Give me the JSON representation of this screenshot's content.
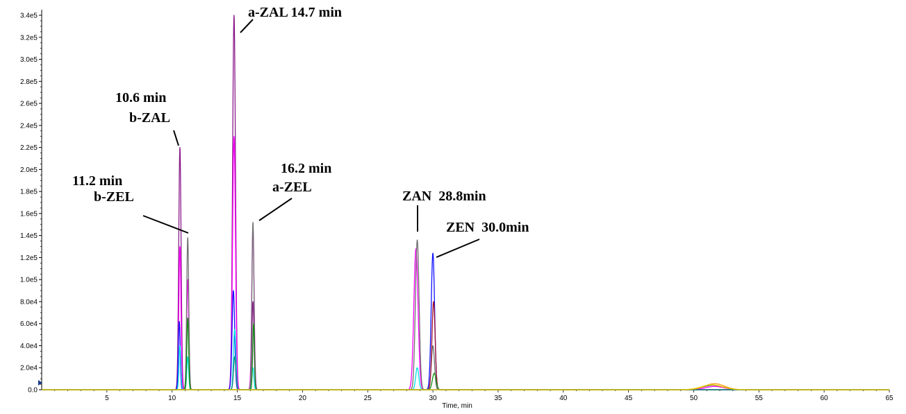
{
  "chart_data": {
    "type": "line",
    "title": "",
    "xlabel": "Time, min",
    "ylabel": "",
    "xlim": [
      0,
      65
    ],
    "ylim": [
      0,
      340000
    ],
    "grid": false,
    "x_ticks": [
      5,
      10,
      15,
      20,
      25,
      30,
      35,
      40,
      45,
      50,
      55,
      60,
      65
    ],
    "x_tick_labels": [
      "5",
      "10",
      "15",
      "20",
      "25",
      "30",
      "35",
      "40",
      "45",
      "50",
      "55",
      "60",
      "65"
    ],
    "y_ticks": [
      0,
      20000,
      40000,
      60000,
      80000,
      100000,
      120000,
      140000,
      160000,
      180000,
      200000,
      220000,
      240000,
      260000,
      280000,
      300000,
      320000,
      340000
    ],
    "y_tick_labels": [
      "0.0",
      "2.0e4",
      "4.0e4",
      "6.0e4",
      "8.0e4",
      "1.0e5",
      "1.2e5",
      "1.4e5",
      "1.6e5",
      "1.8e5",
      "2.0e5",
      "2.2e5",
      "2.4e5",
      "2.6e5",
      "2.8e5",
      "3.0e5",
      "3.2e5",
      "3.4e5"
    ],
    "colors": {
      "purple": "#8a1a8a",
      "magenta": "#ff00ff",
      "cyan": "#00e0e0",
      "blue": "#1010ff",
      "darkred": "#a01030",
      "green": "#109010",
      "gray": "#707070",
      "orange": "#ff9a1a",
      "yellow": "#e0d000",
      "teal": "#108080"
    },
    "series": [
      {
        "color": "purple",
        "peaks": [
          {
            "t": 10.6,
            "h": 220000,
            "w": 0.09
          },
          {
            "t": 14.75,
            "h": 340000,
            "w": 0.11
          },
          {
            "t": 16.2,
            "h": 80000,
            "w": 0.08
          }
        ]
      },
      {
        "color": "magenta",
        "peaks": [
          {
            "t": 10.6,
            "h": 130000,
            "w": 0.08
          },
          {
            "t": 11.2,
            "h": 100000,
            "w": 0.08
          },
          {
            "t": 14.75,
            "h": 230000,
            "w": 0.11
          },
          {
            "t": 16.2,
            "h": 148000,
            "w": 0.09
          },
          {
            "t": 28.7,
            "h": 128000,
            "w": 0.16
          },
          {
            "t": 51.6,
            "h": 3000,
            "w": 0.7
          }
        ]
      },
      {
        "color": "gray",
        "peaks": [
          {
            "t": 11.2,
            "h": 138000,
            "w": 0.08
          },
          {
            "t": 16.2,
            "h": 152000,
            "w": 0.08
          },
          {
            "t": 28.8,
            "h": 136000,
            "w": 0.14
          },
          {
            "t": 30.0,
            "h": 40000,
            "w": 0.12
          },
          {
            "t": 51.5,
            "h": 4000,
            "w": 0.8
          }
        ]
      },
      {
        "color": "blue",
        "peaks": [
          {
            "t": 10.55,
            "h": 62000,
            "w": 0.07
          },
          {
            "t": 14.7,
            "h": 90000,
            "w": 0.1
          },
          {
            "t": 30.0,
            "h": 124000,
            "w": 0.13
          }
        ]
      },
      {
        "color": "cyan",
        "peaks": [
          {
            "t": 10.6,
            "h": 40000,
            "w": 0.07
          },
          {
            "t": 11.2,
            "h": 30000,
            "w": 0.07
          },
          {
            "t": 14.8,
            "h": 55000,
            "w": 0.09
          },
          {
            "t": 16.2,
            "h": 20000,
            "w": 0.07
          },
          {
            "t": 28.8,
            "h": 20000,
            "w": 0.12
          }
        ]
      },
      {
        "color": "darkred",
        "peaks": [
          {
            "t": 30.05,
            "h": 80000,
            "w": 0.12
          }
        ]
      },
      {
        "color": "green",
        "peaks": [
          {
            "t": 11.2,
            "h": 65000,
            "w": 0.07
          },
          {
            "t": 16.25,
            "h": 60000,
            "w": 0.07
          },
          {
            "t": 30.1,
            "h": 15000,
            "w": 0.14
          }
        ]
      },
      {
        "color": "teal",
        "peaks": [
          {
            "t": 14.8,
            "h": 30000,
            "w": 0.09
          }
        ]
      },
      {
        "color": "orange",
        "peaks": [
          {
            "t": 51.6,
            "h": 5500,
            "w": 0.75
          }
        ]
      },
      {
        "color": "yellow",
        "peaks": [
          {
            "t": 51.4,
            "h": 4500,
            "w": 0.8
          }
        ]
      }
    ],
    "annotations": [
      {
        "name": "azal-label",
        "lines": [
          "a-ZAL 14.7 min"
        ]
      },
      {
        "name": "bzal-label",
        "lines": [
          "10.6 min",
          "b-ZAL"
        ]
      },
      {
        "name": "bzel-label",
        "lines": [
          "11.2 min",
          "b-ZEL"
        ]
      },
      {
        "name": "azel-label",
        "lines": [
          "16.2 min",
          "a-ZEL"
        ]
      },
      {
        "name": "zan-label",
        "lines": [
          "ZAN  28.8min"
        ]
      },
      {
        "name": "zen-label",
        "lines": [
          "ZEN  30.0min"
        ]
      }
    ]
  }
}
